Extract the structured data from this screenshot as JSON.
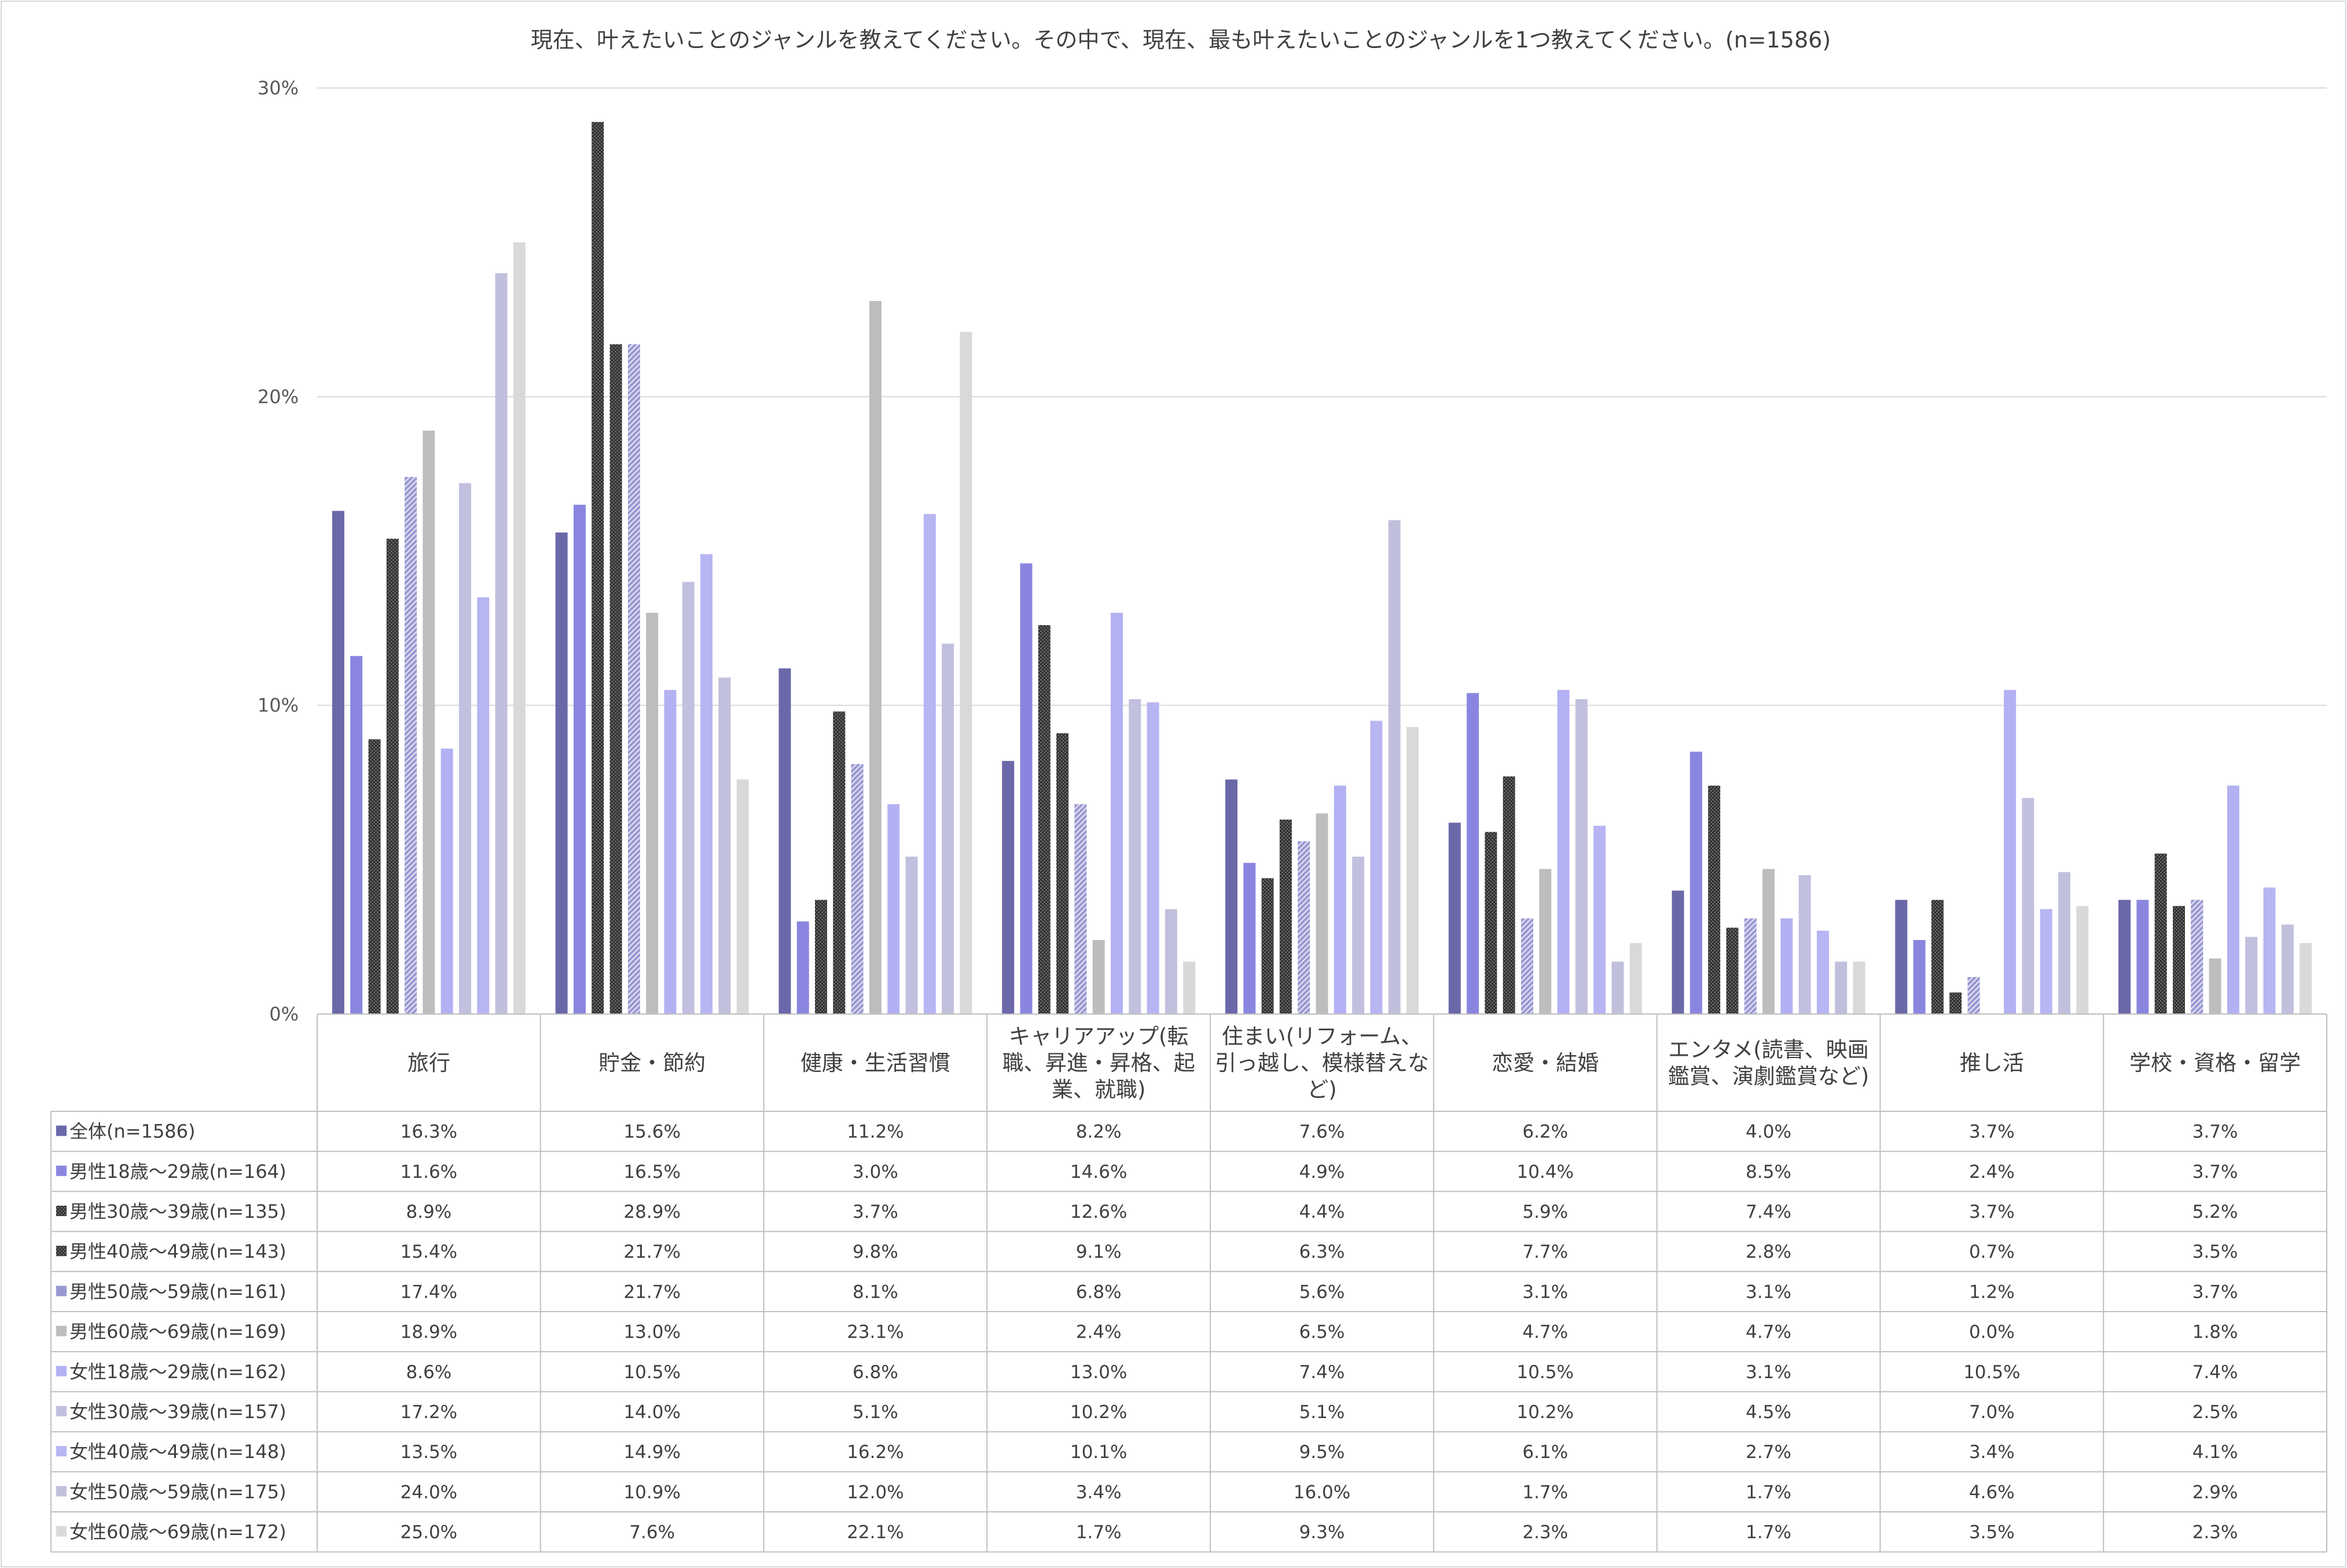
{
  "chart_data": {
    "type": "bar",
    "title": "現在、叶えたいことのジャンルを教えてください。その中で、現在、最も叶えたいことのジャンルを1つ教えてください。(n=1586)",
    "y_ticks": [
      "30%",
      "20%",
      "10%",
      "0%"
    ],
    "ylim": [
      0,
      30
    ],
    "grid": true,
    "legend": "data-table-left",
    "categories": [
      [
        "旅行"
      ],
      [
        "貯金・節約"
      ],
      [
        "健康・生活習慣"
      ],
      [
        "キャリアアップ(転",
        "職、昇進・昇格、起",
        "業、就職)"
      ],
      [
        "住まい(リフォーム、",
        "引っ越し、模様替えな",
        "ど)"
      ],
      [
        "恋愛・結婚"
      ],
      [
        "エンタメ(読書、映画",
        "鑑賞、演劇鑑賞など)"
      ],
      [
        "推し活"
      ],
      [
        "学校・資格・留学"
      ]
    ],
    "series": [
      {
        "name": "全体(n=1586)",
        "color": "#6b68aa",
        "pattern": "solid",
        "values": [
          16.3,
          15.6,
          11.2,
          8.2,
          7.6,
          6.2,
          4.0,
          3.7,
          3.7
        ],
        "labels": [
          "16.3%",
          "15.6%",
          "11.2%",
          "8.2%",
          "7.6%",
          "6.2%",
          "4.0%",
          "3.7%",
          "3.7%"
        ]
      },
      {
        "name": "男性18歳〜29歳(n=164)",
        "color": "#8a86e0",
        "pattern": "solid",
        "values": [
          11.6,
          16.5,
          3.0,
          14.6,
          4.9,
          10.4,
          8.5,
          2.4,
          3.7
        ],
        "labels": [
          "11.6%",
          "16.5%",
          "3.0%",
          "14.6%",
          "4.9%",
          "10.4%",
          "8.5%",
          "2.4%",
          "3.7%"
        ]
      },
      {
        "name": "男性30歳〜39歳(n=135)",
        "color": "#9996c8",
        "pattern": "dots",
        "values": [
          8.9,
          28.9,
          3.7,
          12.6,
          4.4,
          5.9,
          7.4,
          3.7,
          5.2
        ],
        "labels": [
          "8.9%",
          "28.9%",
          "3.7%",
          "12.6%",
          "4.4%",
          "5.9%",
          "7.4%",
          "3.7%",
          "5.2%"
        ]
      },
      {
        "name": "男性40歳〜49歳(n=143)",
        "color": "#8582e0",
        "pattern": "dots",
        "values": [
          15.4,
          21.7,
          9.8,
          9.1,
          6.3,
          7.7,
          2.8,
          0.7,
          3.5
        ],
        "labels": [
          "15.4%",
          "21.7%",
          "9.8%",
          "9.1%",
          "6.3%",
          "7.7%",
          "2.8%",
          "0.7%",
          "3.5%"
        ]
      },
      {
        "name": "男性50歳〜59歳(n=161)",
        "color": "#9a98d2",
        "pattern": "hatch",
        "values": [
          17.4,
          21.7,
          8.1,
          6.8,
          5.6,
          3.1,
          3.1,
          1.2,
          3.7
        ],
        "labels": [
          "17.4%",
          "21.7%",
          "8.1%",
          "6.8%",
          "5.6%",
          "3.1%",
          "3.1%",
          "1.2%",
          "3.7%"
        ]
      },
      {
        "name": "男性60歳〜69歳(n=169)",
        "color": "#bdbdbd",
        "pattern": "solid",
        "values": [
          18.9,
          13.0,
          23.1,
          2.4,
          6.5,
          4.7,
          4.7,
          0.0,
          1.8
        ],
        "labels": [
          "18.9%",
          "13.0%",
          "23.1%",
          "2.4%",
          "6.5%",
          "4.7%",
          "4.7%",
          "0.0%",
          "1.8%"
        ]
      },
      {
        "name": "女性18歳〜29歳(n=162)",
        "color": "#b3b1f3",
        "pattern": "solid",
        "values": [
          8.6,
          10.5,
          6.8,
          13.0,
          7.4,
          10.5,
          3.1,
          10.5,
          7.4
        ],
        "labels": [
          "8.6%",
          "10.5%",
          "6.8%",
          "13.0%",
          "7.4%",
          "10.5%",
          "3.1%",
          "10.5%",
          "7.4%"
        ]
      },
      {
        "name": "女性30歳〜39歳(n=157)",
        "color": "#c2c0df",
        "pattern": "solid",
        "values": [
          17.2,
          14.0,
          5.1,
          10.2,
          5.1,
          10.2,
          4.5,
          7.0,
          2.5
        ],
        "labels": [
          "17.2%",
          "14.0%",
          "5.1%",
          "10.2%",
          "5.1%",
          "10.2%",
          "4.5%",
          "7.0%",
          "2.5%"
        ]
      },
      {
        "name": "女性40歳〜49歳(n=148)",
        "color": "#b7b5f2",
        "pattern": "solid",
        "values": [
          13.5,
          14.9,
          16.2,
          10.1,
          9.5,
          6.1,
          2.7,
          3.4,
          4.1
        ],
        "labels": [
          "13.5%",
          "14.9%",
          "16.2%",
          "10.1%",
          "9.5%",
          "6.1%",
          "2.7%",
          "3.4%",
          "4.1%"
        ]
      },
      {
        "name": "女性50歳〜59歳(n=175)",
        "color": "#c1c0dc",
        "pattern": "solid",
        "values": [
          24.0,
          10.9,
          12.0,
          3.4,
          16.0,
          1.7,
          1.7,
          4.6,
          2.9
        ],
        "labels": [
          "24.0%",
          "10.9%",
          "12.0%",
          "3.4%",
          "16.0%",
          "1.7%",
          "1.7%",
          "4.6%",
          "2.9%"
        ]
      },
      {
        "name": "女性60歳〜69歳(n=172)",
        "color": "#d9d9d9",
        "pattern": "solid",
        "values": [
          25.0,
          7.6,
          22.1,
          1.7,
          9.3,
          2.3,
          1.7,
          3.5,
          2.3
        ],
        "labels": [
          "25.0%",
          "7.6%",
          "22.1%",
          "1.7%",
          "9.3%",
          "2.3%",
          "1.7%",
          "3.5%",
          "2.3%"
        ]
      }
    ]
  }
}
